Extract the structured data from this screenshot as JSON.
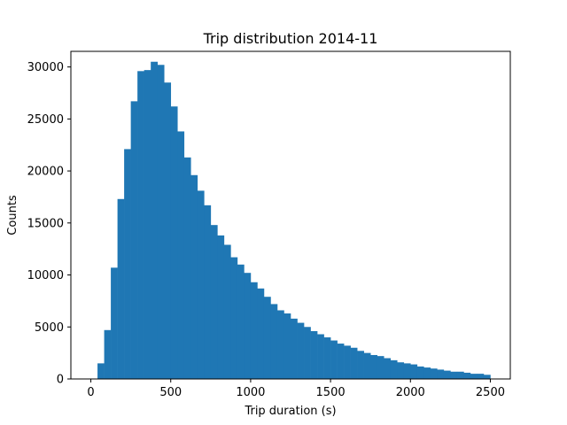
{
  "chart_data": {
    "type": "bar",
    "title": "Trip distribution 2014-11",
    "xlabel": "Trip duration (s)",
    "ylabel": "Counts",
    "xlim": [
      -125,
      2625
    ],
    "ylim": [
      0,
      31500
    ],
    "xticks": [
      0,
      500,
      1000,
      1500,
      2000,
      2500
    ],
    "yticks": [
      0,
      5000,
      10000,
      15000,
      20000,
      25000,
      30000
    ],
    "bin_width": 41.67,
    "bins_start": [
      0,
      41.67,
      83.33,
      125,
      166.67,
      208.33,
      250,
      291.67,
      333.33,
      375,
      416.67,
      458.33,
      500,
      541.67,
      583.33,
      625,
      666.67,
      708.33,
      750,
      791.67,
      833.33,
      875,
      916.67,
      958.33,
      1000,
      1041.67,
      1083.33,
      1125,
      1166.67,
      1208.33,
      1250,
      1291.67,
      1333.33,
      1375,
      1416.67,
      1458.33,
      1500,
      1541.67,
      1583.33,
      1625,
      1666.67,
      1708.33,
      1750,
      1791.67,
      1833.33,
      1875,
      1916.67,
      1958.33,
      2000,
      2041.67,
      2083.33,
      2125,
      2166.67,
      2208.33,
      2250,
      2291.67,
      2333.33,
      2375,
      2416.67,
      2458.33
    ],
    "values": [
      0,
      1500,
      4700,
      10700,
      17300,
      22100,
      26700,
      29600,
      29700,
      30500,
      30200,
      28500,
      26200,
      23800,
      21300,
      19600,
      18100,
      16700,
      14800,
      13800,
      12900,
      11700,
      11000,
      10200,
      9300,
      8700,
      7900,
      7200,
      6600,
      6300,
      5800,
      5400,
      5000,
      4600,
      4300,
      4000,
      3700,
      3400,
      3200,
      3000,
      2700,
      2500,
      2300,
      2200,
      2000,
      1800,
      1600,
      1500,
      1400,
      1200,
      1100,
      1000,
      900,
      800,
      700,
      700,
      600,
      500,
      500,
      400
    ],
    "color": "#1f77b4",
    "grid": false
  }
}
